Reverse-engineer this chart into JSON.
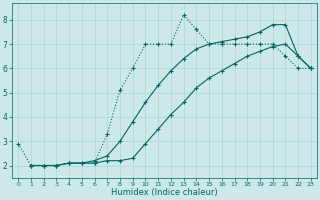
{
  "xlabel": "Humidex (Indice chaleur)",
  "bg_color": "#cce8e8",
  "grid_color": "#aad4d4",
  "line_color": "#006666",
  "xlim": [
    -0.5,
    23.5
  ],
  "ylim": [
    1.5,
    8.7
  ],
  "xticks": [
    0,
    1,
    2,
    3,
    4,
    5,
    6,
    7,
    8,
    9,
    10,
    11,
    12,
    13,
    14,
    15,
    16,
    17,
    18,
    19,
    20,
    21,
    22,
    23
  ],
  "yticks": [
    2,
    3,
    4,
    5,
    6,
    7,
    8
  ],
  "series1_x": [
    0,
    1,
    2,
    3,
    4,
    5,
    6,
    7,
    8,
    9,
    10,
    11,
    12,
    13,
    14,
    15,
    16,
    17,
    18,
    19,
    20,
    21,
    22,
    23
  ],
  "series1_y": [
    2.9,
    2.0,
    2.0,
    2.0,
    2.1,
    2.1,
    2.1,
    3.3,
    5.1,
    6.0,
    7.0,
    7.0,
    7.0,
    8.2,
    7.6,
    7.0,
    7.0,
    7.0,
    7.0,
    7.0,
    7.0,
    6.5,
    6.0,
    6.0
  ],
  "series2_x": [
    1,
    2,
    3,
    4,
    5,
    6,
    7,
    8,
    9,
    10,
    11,
    12,
    13,
    14,
    15,
    16,
    17,
    18,
    19,
    20,
    21,
    22,
    23
  ],
  "series2_y": [
    2.0,
    2.0,
    2.0,
    2.1,
    2.1,
    2.1,
    2.2,
    2.2,
    2.3,
    2.9,
    3.5,
    4.1,
    4.6,
    5.2,
    5.6,
    5.9,
    6.2,
    6.5,
    6.7,
    6.9,
    7.0,
    6.5,
    6.0
  ],
  "series3_x": [
    1,
    2,
    3,
    4,
    5,
    6,
    7,
    8,
    9,
    10,
    11,
    12,
    13,
    14,
    15,
    16,
    17,
    18,
    19,
    20,
    21,
    22,
    23
  ],
  "series3_y": [
    2.0,
    2.0,
    2.0,
    2.1,
    2.1,
    2.2,
    2.4,
    3.0,
    3.8,
    4.6,
    5.3,
    5.9,
    6.4,
    6.8,
    7.0,
    7.1,
    7.2,
    7.3,
    7.5,
    7.8,
    7.8,
    6.5,
    6.0
  ]
}
